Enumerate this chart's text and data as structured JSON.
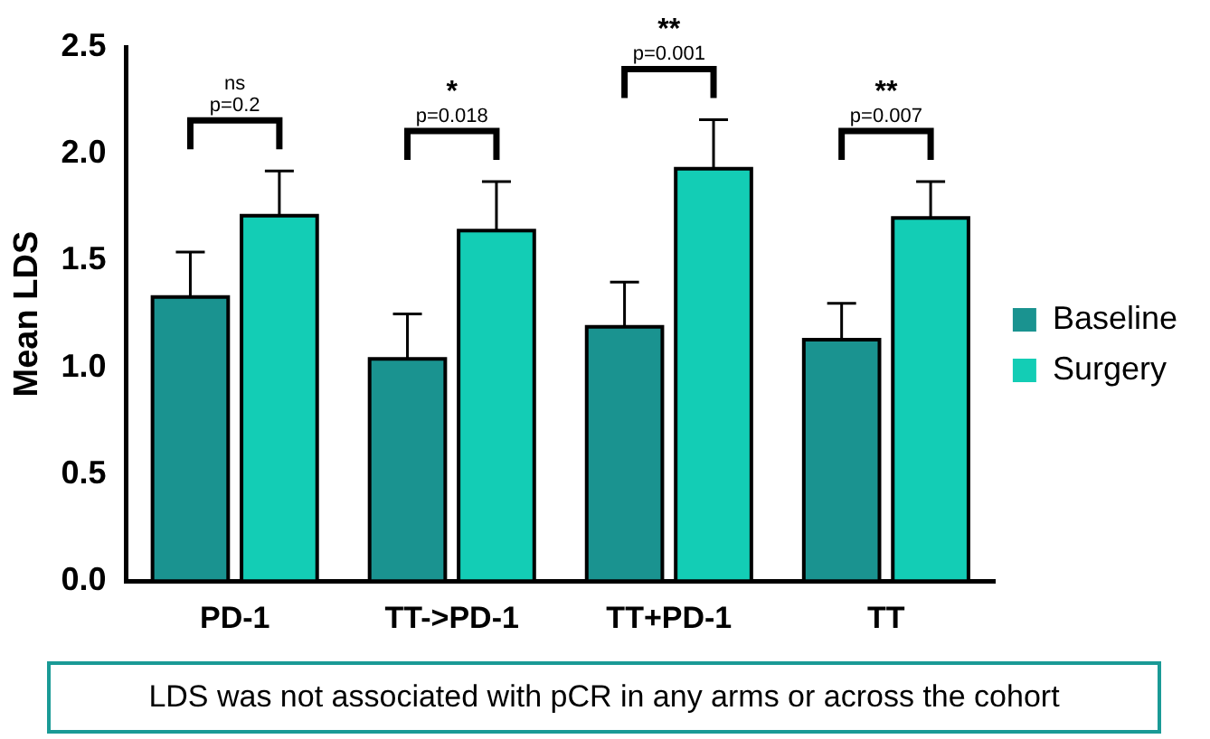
{
  "chart_data": {
    "type": "bar",
    "ylabel": "Mean LDS",
    "categories": [
      "PD-1",
      "TT->PD-1",
      "TT+PD-1",
      "TT"
    ],
    "series": [
      {
        "name": "Baseline",
        "color": "#1a9390",
        "values": [
          1.33,
          1.04,
          1.19,
          1.13
        ],
        "errors": [
          [
            1.33,
            1.54
          ],
          [
            1.04,
            1.25
          ],
          [
            1.19,
            1.4
          ],
          [
            1.13,
            1.3
          ]
        ]
      },
      {
        "name": "Surgery",
        "color": "#13cdb5",
        "values": [
          1.71,
          1.64,
          1.93,
          1.7
        ],
        "errors": [
          [
            1.71,
            1.92
          ],
          [
            1.64,
            1.87
          ],
          [
            1.93,
            2.16
          ],
          [
            1.7,
            1.87
          ]
        ]
      }
    ],
    "ylim": [
      0,
      2.5
    ],
    "yticks": [
      {
        "value": 0,
        "label": "0.0"
      },
      0.5,
      {
        "value": 1,
        "label": "1.0"
      },
      1.5,
      {
        "value": 2,
        "label": "2.0"
      },
      2.5
    ],
    "grid": false,
    "legend": "right",
    "annotations": [
      "ns",
      "p=0.2",
      "*",
      "p=0.018",
      "**",
      "p=0.001",
      "**",
      "p=0.007",
      "LDS was not associated with pCR in any arms or across the cohort"
    ]
  }
}
